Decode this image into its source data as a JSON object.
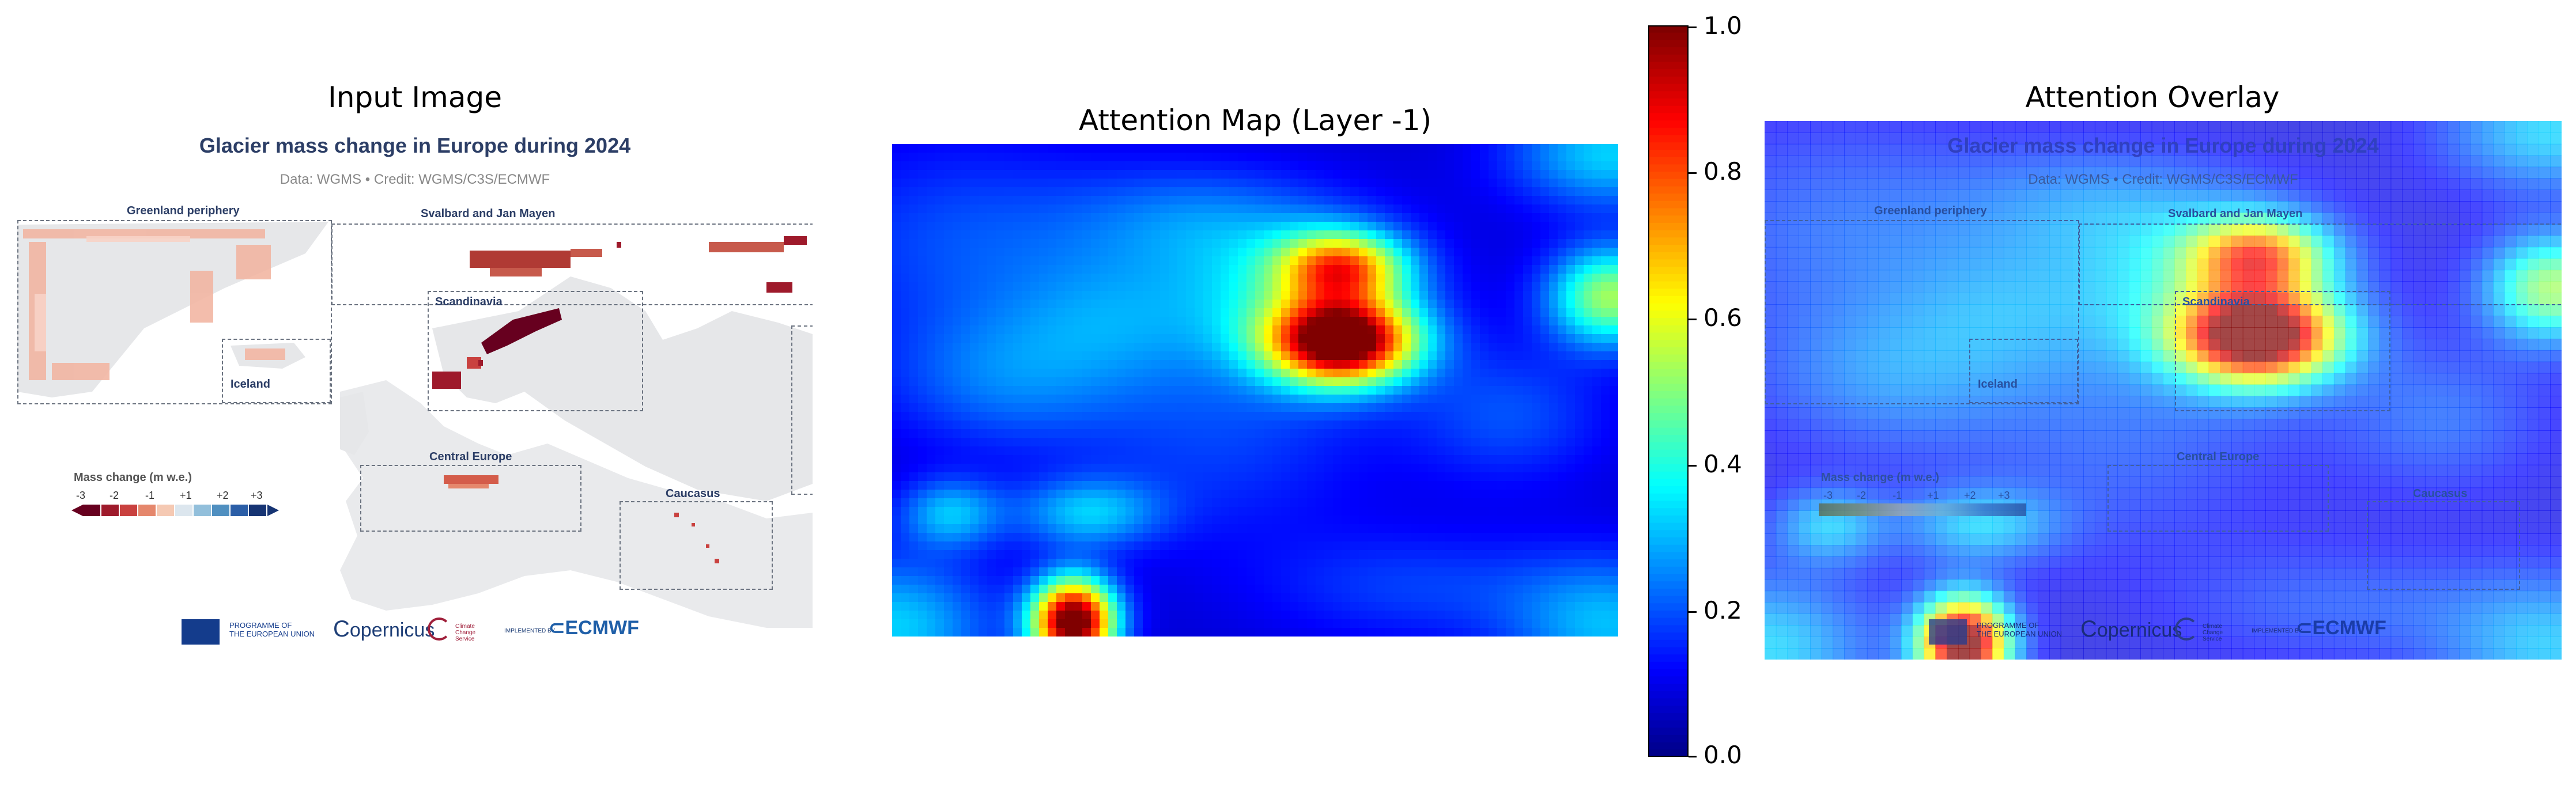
{
  "panels": {
    "input_title": "Input Image",
    "attention_title": "Attention Map (Layer -1)",
    "overlay_title": "Attention Overlay"
  },
  "infographic": {
    "title": "Glacier mass change in Europe during 2024",
    "subtitle": "Data: WGMS • Credit: WGMS/C3S/ECMWF",
    "regions": {
      "greenland": "Greenland periphery",
      "svalbard": "Svalbard and Jan Mayen",
      "scandinavia": "Scandinavia",
      "iceland": "Iceland",
      "central_europe": "Central Europe",
      "caucasus": "Caucasus"
    },
    "legend": {
      "title": "Mass change (m w.e.)",
      "ticks": [
        "-3",
        "-2",
        "-1",
        "+1",
        "+2",
        "+3"
      ],
      "colors": [
        "#67001f",
        "#9e1a2b",
        "#c9413f",
        "#e5876c",
        "#f5c9b3",
        "#dce6ee",
        "#92bfdb",
        "#4f8fc0",
        "#2b5ea7",
        "#163473"
      ]
    },
    "logos": {
      "eu_line1": "PROGRAMME OF",
      "eu_line2": "THE EUROPEAN UNION",
      "copernicus": "opernicus",
      "climate": "Climate Change Service",
      "implemented": "IMPLEMENTED BY",
      "ecmwf": "ECMWF"
    }
  },
  "colorbar": {
    "ticks": [
      "1.0",
      "0.8",
      "0.6",
      "0.4",
      "0.2",
      "0.0"
    ],
    "colormap": "jet"
  }
}
